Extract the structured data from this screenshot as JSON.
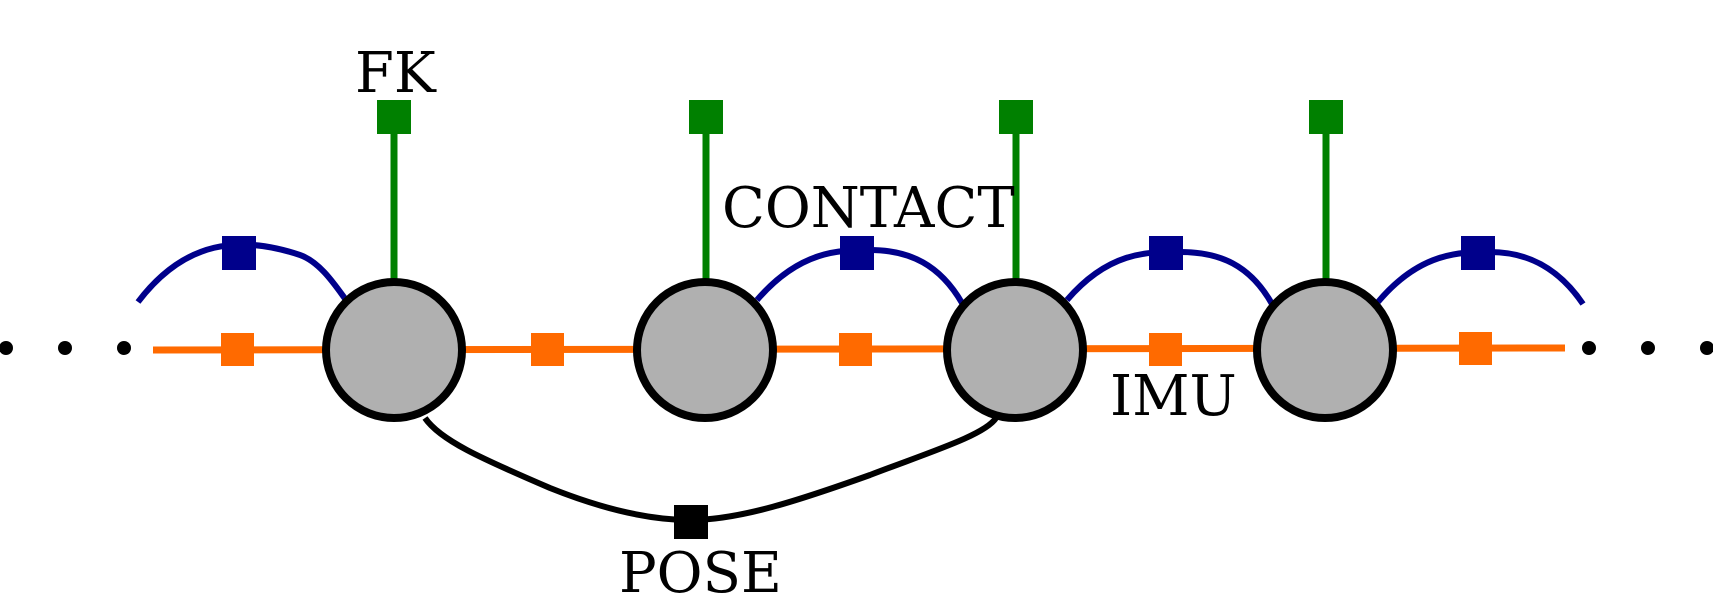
{
  "labels": {
    "fk": "FK",
    "contact": "CONTACT",
    "imu": "IMU",
    "pose": "POSE"
  },
  "colors": {
    "fk_factor": "#008000",
    "contact_factor": "#00008b",
    "imu_factor": "#ff6a00",
    "pose_factor": "#000000",
    "state_node_fill": "#b0b0b0",
    "state_node_stroke": "#000000"
  },
  "structure": {
    "state_nodes": 4,
    "ellipsis_left": "...",
    "ellipsis_right": "..."
  }
}
